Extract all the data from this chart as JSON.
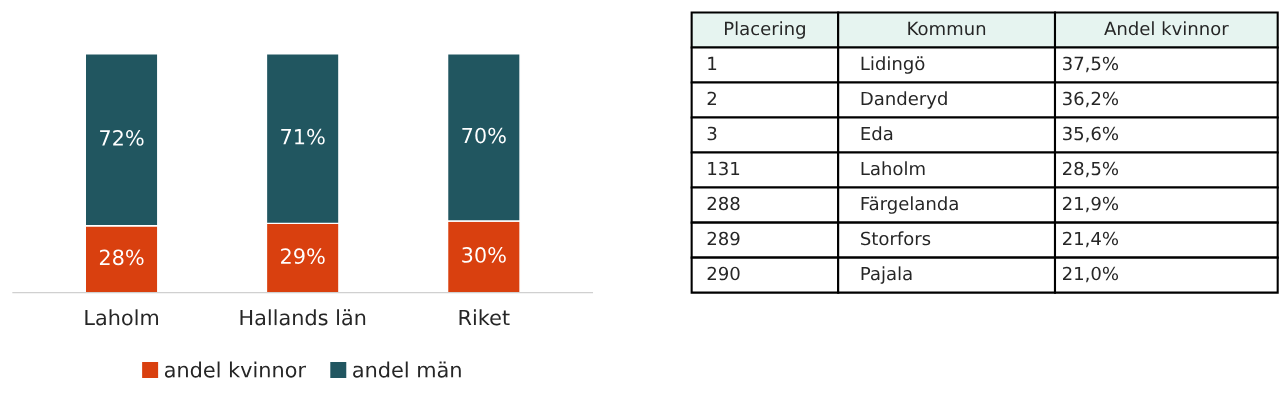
{
  "chart_data": [
    {
      "type": "bar",
      "stacked": true,
      "categories": [
        "Laholm",
        "Hallands län",
        "Riket"
      ],
      "legend": "bottom",
      "series": [
        {
          "name": "andel kvinnor",
          "color": "#d9400f",
          "values": [
            28,
            29,
            30
          ],
          "value_labels": [
            "28%",
            "29%",
            "30%"
          ]
        },
        {
          "name": "andel män",
          "color": "#215660",
          "values": [
            72,
            71,
            70
          ],
          "value_labels": [
            "72%",
            "71%",
            "70%"
          ]
        }
      ]
    },
    {
      "type": "other",
      "categories": [
        "Placering",
        "Kommun",
        "Andel kvinnor"
      ],
      "annotations": [
        "1",
        "Lidingö",
        "37,5%",
        "2",
        "Danderyd",
        "36,2%",
        "3",
        "Eda",
        "35,6%",
        "131",
        "Laholm",
        "28,5%",
        "288",
        "Färgelanda",
        "21,9%",
        "289",
        "Storfors",
        "21,4%",
        "290",
        "Pajala",
        "21,0%"
      ]
    }
  ]
}
